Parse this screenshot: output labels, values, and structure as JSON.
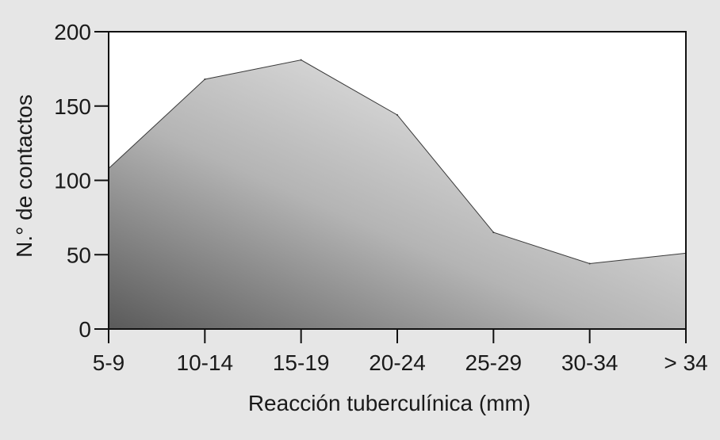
{
  "chart_data": {
    "type": "area",
    "categories": [
      "5-9",
      "10-14",
      "15-19",
      "20-24",
      "25-29",
      "30-34",
      "> 34"
    ],
    "values": [
      108,
      168,
      181,
      144,
      65,
      44,
      51
    ],
    "xlabel": "Reacción tuberculínica (mm)",
    "ylabel": "N.° de contactos",
    "ylim": [
      0,
      200
    ],
    "yticks": [
      0,
      50,
      100,
      150,
      200
    ],
    "grid": false,
    "legend": "none",
    "colors": {
      "background": "#e6e6e6",
      "plot_background": "#ffffff",
      "fill_dark": "#5a5a5a",
      "fill_mid": "#b4b4b4",
      "fill_light": "#f0f0f0",
      "line": "#3a3a3a",
      "axis": "#111111"
    }
  }
}
